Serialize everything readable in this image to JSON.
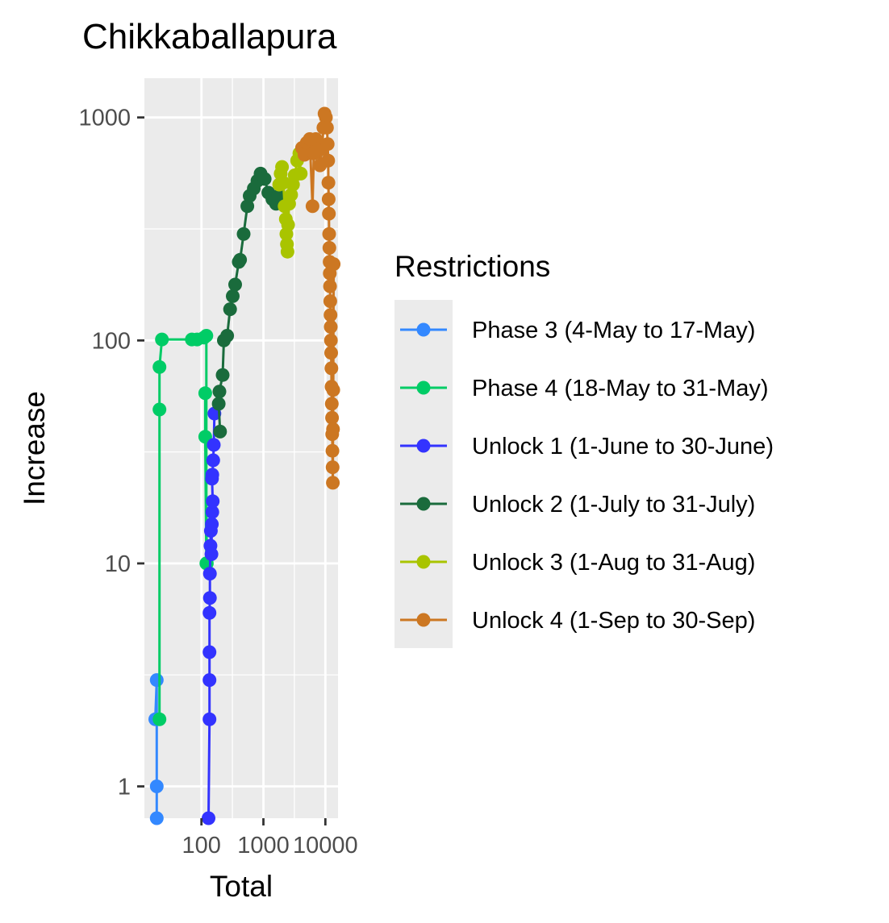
{
  "chart_data": {
    "type": "line",
    "title": "Chikkaballapura",
    "xlabel": "Total",
    "ylabel": "Increase",
    "x_scale": "log10",
    "y_scale": "log10",
    "xlim": [
      12,
      16000
    ],
    "ylim": [
      0.72,
      1500
    ],
    "x_ticks": [
      100,
      1000,
      10000
    ],
    "x_tick_labels": [
      "100",
      "1000",
      "10000"
    ],
    "y_ticks": [
      1,
      10,
      100,
      1000
    ],
    "y_tick_labels": [
      "1",
      "10",
      "100",
      "1000"
    ],
    "grid": true,
    "legend": {
      "title": "Restrictions",
      "position": "right"
    },
    "series": [
      {
        "name": "Phase 3 (4-May to 17-May)",
        "color": "#3388ff",
        "points": [
          [
            18,
            2
          ],
          [
            19,
            3
          ],
          [
            19,
            1
          ],
          [
            19,
            0.72
          ]
        ]
      },
      {
        "name": "Phase 4 (18-May to 31-May)",
        "color": "#00cc66",
        "points": [
          [
            21,
            2
          ],
          [
            21,
            49
          ],
          [
            21,
            76
          ],
          [
            23,
            101
          ],
          [
            70,
            101
          ],
          [
            85,
            101
          ],
          [
            110,
            103
          ],
          [
            120,
            105
          ],
          [
            120,
            10
          ],
          [
            115,
            37
          ],
          [
            115,
            58
          ],
          [
            122,
            10
          ]
        ]
      },
      {
        "name": "Unlock 1 (1-June to 30-June)",
        "color": "#3333ff",
        "points": [
          [
            130,
            0.72
          ],
          [
            135,
            2
          ],
          [
            135,
            3
          ],
          [
            135,
            4
          ],
          [
            135,
            6
          ],
          [
            137,
            7
          ],
          [
            137,
            9
          ],
          [
            140,
            12
          ],
          [
            142,
            14
          ],
          [
            145,
            11
          ],
          [
            147,
            15
          ],
          [
            150,
            17
          ],
          [
            152,
            19
          ],
          [
            148,
            24
          ],
          [
            150,
            25
          ],
          [
            155,
            29
          ],
          [
            158,
            34
          ],
          [
            162,
            47
          ]
        ]
      },
      {
        "name": "Unlock 2 (1-July to 31-July)",
        "color": "#1a6b3c",
        "points": [
          [
            200,
            39
          ],
          [
            190,
            52
          ],
          [
            195,
            59
          ],
          [
            220,
            70
          ],
          [
            230,
            100
          ],
          [
            260,
            105
          ],
          [
            290,
            138
          ],
          [
            320,
            158
          ],
          [
            350,
            178
          ],
          [
            400,
            225
          ],
          [
            420,
            230
          ],
          [
            480,
            300
          ],
          [
            550,
            400
          ],
          [
            600,
            445
          ],
          [
            700,
            480
          ],
          [
            800,
            520
          ],
          [
            900,
            560
          ],
          [
            1050,
            530
          ],
          [
            1200,
            460
          ],
          [
            1400,
            430
          ],
          [
            1600,
            410
          ],
          [
            1750,
            445
          ]
        ]
      },
      {
        "name": "Unlock 3 (1-Aug to 31-Aug)",
        "color": "#a9c400",
        "points": [
          [
            1800,
            500
          ],
          [
            1900,
            560
          ],
          [
            2000,
            600
          ],
          [
            2100,
            510
          ],
          [
            2200,
            400
          ],
          [
            2300,
            350
          ],
          [
            2350,
            300
          ],
          [
            2400,
            270
          ],
          [
            2450,
            250
          ],
          [
            2500,
            330
          ],
          [
            2600,
            410
          ],
          [
            2800,
            450
          ],
          [
            3000,
            500
          ],
          [
            3200,
            550
          ],
          [
            3500,
            640
          ],
          [
            3800,
            690
          ],
          [
            4000,
            560
          ]
        ]
      },
      {
        "name": "Unlock 4 (1-Sep to 30-Sep)",
        "color": "#cc7722",
        "points": [
          [
            4200,
            730
          ],
          [
            4600,
            680
          ],
          [
            5000,
            770
          ],
          [
            5600,
            800
          ],
          [
            6200,
            400
          ],
          [
            6500,
            690
          ],
          [
            7000,
            800
          ],
          [
            7600,
            720
          ],
          [
            8200,
            610
          ],
          [
            8800,
            720
          ],
          [
            9300,
            900
          ],
          [
            9700,
            1040
          ],
          [
            10200,
            1000
          ],
          [
            10600,
            900
          ],
          [
            10900,
            760
          ],
          [
            11100,
            640
          ],
          [
            11200,
            510
          ],
          [
            11300,
            430
          ],
          [
            11400,
            370
          ],
          [
            11500,
            300
          ],
          [
            11600,
            260
          ],
          [
            11700,
            225
          ],
          [
            11800,
            200
          ],
          [
            11900,
            175
          ],
          [
            12000,
            150
          ],
          [
            12100,
            130
          ],
          [
            12200,
            115
          ],
          [
            12300,
            100
          ],
          [
            12400,
            88
          ],
          [
            12500,
            75
          ],
          [
            12600,
            62
          ],
          [
            12700,
            52
          ],
          [
            12800,
            45
          ],
          [
            12900,
            38
          ],
          [
            13000,
            32
          ],
          [
            13100,
            27
          ],
          [
            13200,
            23
          ],
          [
            13300,
            40
          ],
          [
            13400,
            60
          ],
          [
            13600,
            220
          ]
        ]
      }
    ]
  }
}
